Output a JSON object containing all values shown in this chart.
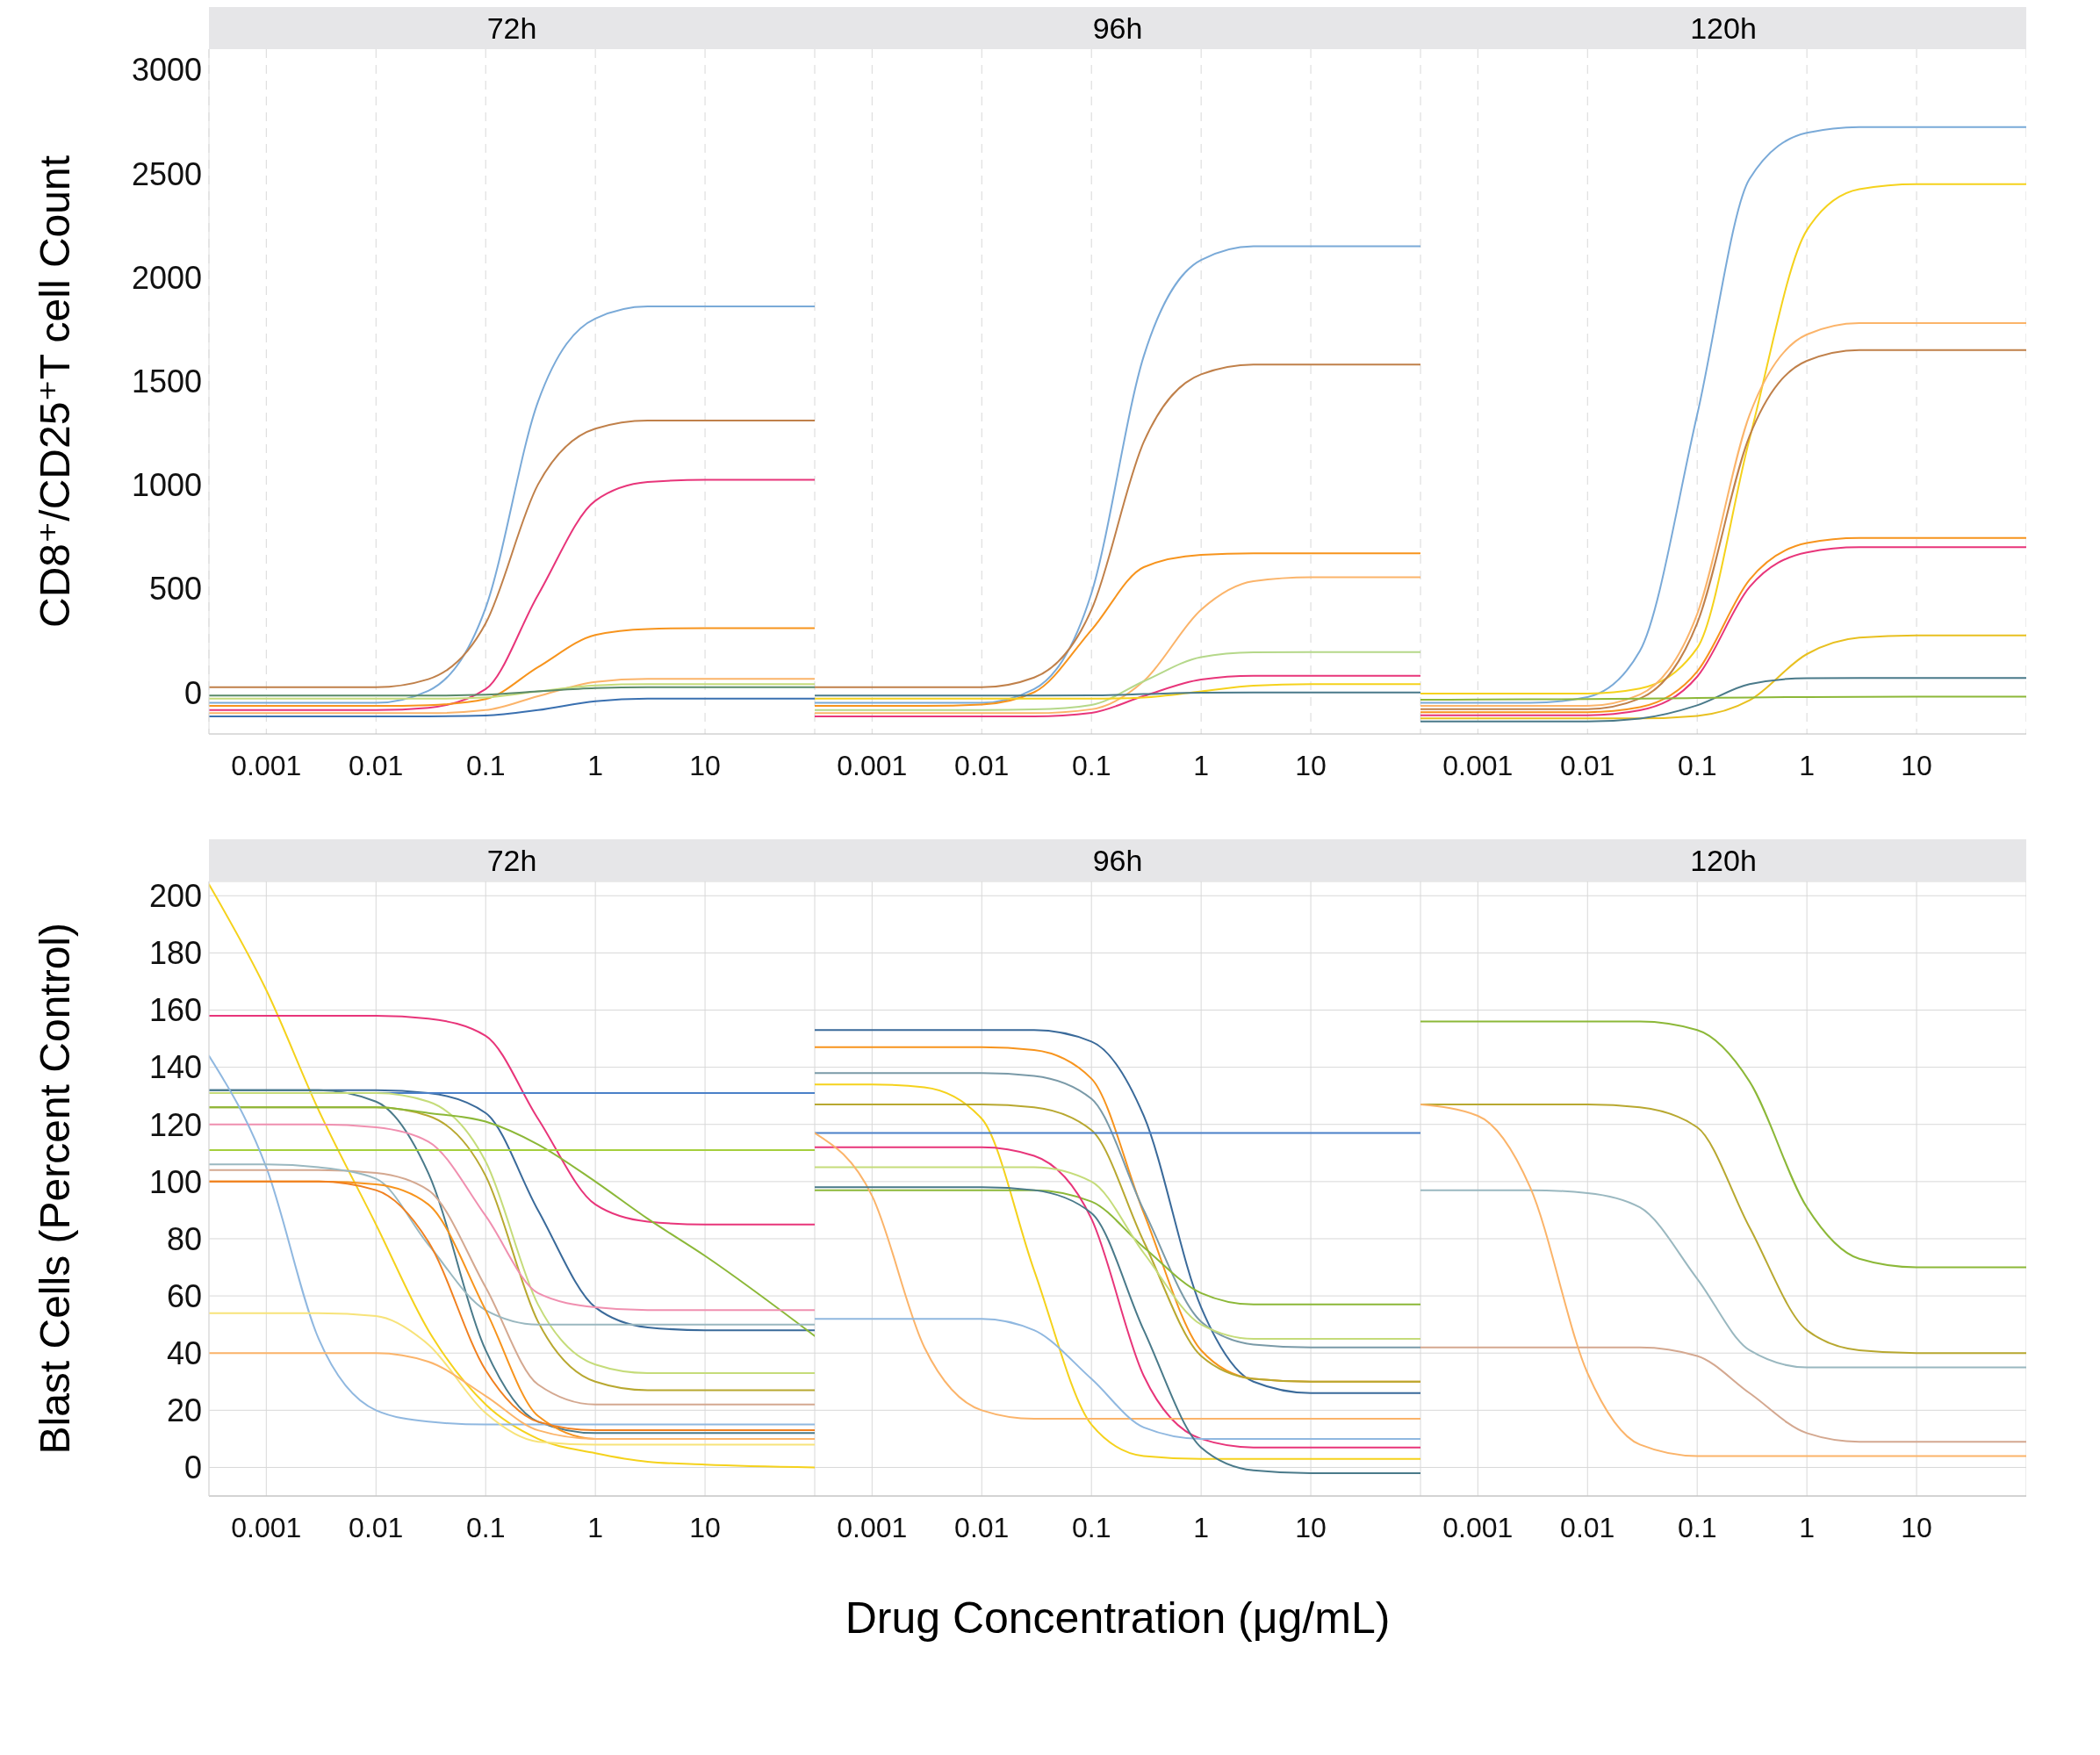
{
  "chart_data": [
    {
      "type": "line",
      "title": "72h",
      "ylabel": "CD8⁺/CD25⁺T cell Count",
      "log": "x",
      "grid": "x",
      "xlim": [
        0.0003,
        100
      ],
      "xticks": [
        0.001,
        0.01,
        0.1,
        1,
        10
      ],
      "ylim": [
        -200,
        3100
      ],
      "yticks": [
        0,
        500,
        1000,
        1500,
        2000,
        2500,
        3000
      ],
      "x": [
        0.0003,
        0.001,
        0.003,
        0.01,
        0.03,
        0.1,
        0.3,
        1,
        3,
        10,
        100
      ],
      "series": [
        {
          "color": "#7aaad8",
          "values": [
            -50,
            -50,
            -50,
            -50,
            8,
            408,
            1401,
            1802,
            1860,
            1860,
            1860
          ]
        },
        {
          "color": "#c0804a",
          "values": [
            25,
            25,
            25,
            25,
            64,
            333,
            1002,
            1271,
            1310,
            1310,
            1310
          ]
        },
        {
          "color": "#e8357a",
          "values": [
            -85,
            -85,
            -85,
            -85,
            -74,
            16,
            470,
            924,
            1014,
            1025,
            1025
          ]
        },
        {
          "color": "#f7941d",
          "values": [
            -65,
            -65,
            -65,
            -65,
            -61,
            -32,
            122,
            277,
            306,
            310,
            310
          ]
        },
        {
          "color": "#fbb46a",
          "values": [
            -100,
            -100,
            -100,
            -100,
            -100,
            -85,
            -18,
            51,
            65,
            65,
            65
          ]
        },
        {
          "color": "#c5dc7a",
          "values": [
            -30,
            -30,
            -30,
            -30,
            -30,
            -24,
            5,
            34,
            40,
            40,
            40
          ]
        },
        {
          "color": "#5a8a6a",
          "values": [
            -15,
            -15,
            -15,
            -15,
            -15,
            -11,
            5,
            21,
            25,
            25,
            25
          ]
        },
        {
          "color": "#3a70b0",
          "values": [
            -115,
            -115,
            -115,
            -115,
            -115,
            -111,
            -85,
            -42,
            -30,
            -30,
            -30
          ]
        }
      ]
    },
    {
      "type": "line",
      "title": "96h",
      "log": "x",
      "grid": "x",
      "tick_labels": "x",
      "xlim": [
        0.0003,
        100
      ],
      "xticks": [
        0.001,
        0.01,
        0.1,
        1,
        10
      ],
      "ylim": [
        -200,
        3100
      ],
      "yticks": [
        0,
        500,
        1000,
        1500,
        2000,
        2500,
        3000
      ],
      "x": [
        0.0003,
        0.001,
        0.003,
        0.01,
        0.03,
        0.1,
        0.3,
        1,
        3,
        10,
        100
      ],
      "series": [
        {
          "color": "#7aaad8",
          "values": [
            -50,
            -50,
            -50,
            -50,
            16,
            478,
            1621,
            2084,
            2150,
            2150,
            2150
          ]
        },
        {
          "color": "#c0804a",
          "values": [
            25,
            25,
            25,
            25,
            72,
            398,
            1207,
            1533,
            1580,
            1580,
            1580
          ]
        },
        {
          "color": "#f7941d",
          "values": [
            -65,
            -65,
            -65,
            -58,
            1,
            301,
            604,
            663,
            670,
            670,
            670
          ]
        },
        {
          "color": "#fbb46a",
          "values": [
            -100,
            -100,
            -100,
            -100,
            -100,
            -81,
            55,
            399,
            536,
            555,
            555
          ]
        },
        {
          "color": "#b5d88a",
          "values": [
            -85,
            -85,
            -85,
            -85,
            -82,
            -60,
            54,
            170,
            193,
            195,
            195
          ]
        },
        {
          "color": "#e8357a",
          "values": [
            -115,
            -115,
            -115,
            -115,
            -115,
            -98,
            -17,
            62,
            80,
            80,
            80
          ]
        },
        {
          "color": "#f5d21c",
          "values": [
            -30,
            -30,
            -30,
            -30,
            -30,
            -30,
            -24,
            5,
            33,
            40,
            40
          ]
        },
        {
          "color": "#4a7a8a",
          "values": [
            -15,
            -15,
            -15,
            -15,
            -15,
            -14,
            -8,
            -1,
            0,
            0,
            0
          ]
        }
      ]
    },
    {
      "type": "line",
      "title": "120h",
      "log": "x",
      "grid": "x",
      "tick_labels": "x",
      "xlim": [
        0.0003,
        100
      ],
      "xticks": [
        0.001,
        0.01,
        0.1,
        1,
        10
      ],
      "ylim": [
        -200,
        3100
      ],
      "yticks": [
        0,
        500,
        1000,
        1500,
        2000,
        2500,
        3000
      ],
      "x": [
        0.0003,
        0.001,
        0.003,
        0.01,
        0.03,
        0.1,
        0.3,
        1,
        3,
        10,
        100
      ],
      "series": [
        {
          "color": "#7aaad8",
          "values": [
            -50,
            -50,
            -50,
            -22,
            200,
            1339,
            2475,
            2697,
            2725,
            2725,
            2725
          ]
        },
        {
          "color": "#f5d21c",
          "values": [
            -5,
            -5,
            -5,
            -5,
            19,
            214,
            1222,
            2228,
            2425,
            2450,
            2450
          ]
        },
        {
          "color": "#fbb46a",
          "values": [
            -65,
            -65,
            -65,
            -65,
            -10,
            378,
            1337,
            1725,
            1780,
            1780,
            1780
          ]
        },
        {
          "color": "#c0804a",
          "values": [
            -80,
            -80,
            -80,
            -80,
            -29,
            334,
            1236,
            1598,
            1650,
            1650,
            1650
          ]
        },
        {
          "color": "#f7941d",
          "values": [
            -95,
            -95,
            -95,
            -95,
            -71,
            101,
            543,
            720,
            745,
            745,
            745
          ]
        },
        {
          "color": "#e8357a",
          "values": [
            -110,
            -110,
            -110,
            -110,
            -86,
            76,
            508,
            675,
            700,
            700,
            700
          ]
        },
        {
          "color": "#e8c020",
          "values": [
            -125,
            -125,
            -125,
            -125,
            -125,
            -113,
            -38,
            185,
            264,
            275,
            275
          ]
        },
        {
          "color": "#4a7a8a",
          "values": [
            -140,
            -140,
            -140,
            -140,
            -126,
            -62,
            40,
            69,
            70,
            70,
            70
          ]
        },
        {
          "color": "#8cb838",
          "values": [
            -35,
            -34,
            -33,
            -32,
            -30,
            -27,
            -24,
            -22,
            -21,
            -20,
            -20
          ]
        }
      ]
    },
    {
      "type": "line",
      "title": "72h",
      "ylabel": "Blast Cells (Percent Control)",
      "log": "x",
      "grid": true,
      "xlim": [
        0.0003,
        100
      ],
      "xticks": [
        0.001,
        0.01,
        0.1,
        1,
        10
      ],
      "ylim": [
        -10,
        205
      ],
      "yticks": [
        0,
        20,
        40,
        60,
        80,
        100,
        120,
        140,
        160,
        180,
        200
      ],
      "x": [
        0.0003,
        0.001,
        0.003,
        0.01,
        0.03,
        0.1,
        0.3,
        1,
        3,
        10,
        100
      ],
      "series": [
        {
          "color": "#f5d21c",
          "values": [
            204,
            167,
            125,
            85,
            48,
            22,
            10,
            5,
            2,
            1,
            0
          ]
        },
        {
          "color": "#e8357a",
          "values": [
            158,
            158,
            158,
            158,
            157,
            151,
            122,
            92,
            86,
            85,
            85
          ]
        },
        {
          "color": "#3a6a9a",
          "values": [
            132,
            132,
            132,
            132,
            131,
            124,
            90,
            56,
            49,
            48,
            48
          ]
        },
        {
          "color": "#4a80c8",
          "values": [
            131,
            131,
            131,
            131,
            131,
            131,
            131,
            131,
            131,
            131,
            131
          ]
        },
        {
          "color": "#4a7a8a",
          "values": [
            132,
            132,
            132,
            128,
            103,
            41,
            16,
            12,
            12,
            12,
            12
          ]
        },
        {
          "color": "#c5dc7a",
          "values": [
            131,
            131,
            131,
            131,
            128,
            107,
            57,
            36,
            33,
            33,
            33
          ]
        },
        {
          "color": "#b8a830",
          "values": [
            126,
            126,
            126,
            126,
            123,
            102,
            51,
            30,
            27,
            27,
            27
          ]
        },
        {
          "color": "#8cb838",
          "values": [
            126,
            126,
            126,
            126,
            124,
            121,
            113,
            100,
            87,
            74,
            46
          ]
        },
        {
          "color": "#f090b0",
          "values": [
            120,
            120,
            120,
            119,
            114,
            88,
            61,
            56,
            55,
            55,
            55
          ]
        },
        {
          "color": "#a5cf3c",
          "values": [
            111,
            111,
            111,
            111,
            111,
            111,
            111,
            111,
            111,
            111,
            111
          ]
        },
        {
          "color": "#90b8e0",
          "values": [
            144,
            105,
            45,
            20,
            16,
            15,
            15,
            15,
            15,
            15,
            15
          ]
        },
        {
          "color": "#d4a890",
          "values": [
            104,
            104,
            104,
            103,
            97,
            63,
            29,
            22,
            22,
            22,
            22
          ]
        },
        {
          "color": "#9ab8c0",
          "values": [
            106,
            106,
            105,
            101,
            78,
            55,
            50,
            50,
            50,
            50,
            50
          ]
        },
        {
          "color": "#f7941d",
          "values": [
            100,
            100,
            100,
            99,
            92,
            55,
            18,
            10,
            10,
            10,
            10
          ]
        },
        {
          "color": "#f08020",
          "values": [
            100,
            100,
            100,
            97,
            79,
            34,
            16,
            13,
            13,
            13,
            13
          ]
        },
        {
          "color": "#f7e37a",
          "values": [
            54,
            54,
            54,
            53,
            43,
            19,
            9,
            8,
            8,
            8,
            8
          ]
        },
        {
          "color": "#fbb46a",
          "values": [
            40,
            40,
            40,
            40,
            37,
            25,
            13,
            10,
            10,
            10,
            10
          ]
        }
      ]
    },
    {
      "type": "line",
      "title": "96h",
      "xlabel": "Drug Concentration (μg/mL)",
      "log": "x",
      "grid": true,
      "tick_labels": "x",
      "xlim": [
        0.0003,
        100
      ],
      "xticks": [
        0.001,
        0.01,
        0.1,
        1,
        10
      ],
      "ylim": [
        -10,
        205
      ],
      "yticks": [
        0,
        20,
        40,
        60,
        80,
        100,
        120,
        140,
        160,
        180,
        200
      ],
      "x": [
        0.0003,
        0.001,
        0.003,
        0.01,
        0.03,
        0.1,
        0.3,
        1,
        3,
        10,
        100
      ],
      "series": [
        {
          "color": "#3a6a9a",
          "values": [
            153,
            153,
            153,
            153,
            153,
            149,
            123,
            56,
            30,
            26,
            26
          ]
        },
        {
          "color": "#f7941d",
          "values": [
            147,
            147,
            147,
            147,
            146,
            136,
            89,
            41,
            31,
            30,
            30
          ]
        },
        {
          "color": "#7a9aa8",
          "values": [
            138,
            138,
            138,
            138,
            137,
            129,
            90,
            51,
            43,
            42,
            42
          ]
        },
        {
          "color": "#f5d21c",
          "values": [
            134,
            134,
            133,
            122,
            69,
            15,
            4,
            3,
            3,
            3,
            3
          ]
        },
        {
          "color": "#b8a830",
          "values": [
            127,
            127,
            127,
            127,
            126,
            118,
            79,
            39,
            31,
            30,
            30
          ]
        },
        {
          "color": "#8cb838",
          "values": [
            97,
            97,
            97,
            97,
            97,
            93,
            77,
            61,
            57,
            57,
            57
          ]
        },
        {
          "color": "#4a80c8",
          "values": [
            117,
            117,
            117,
            117,
            117,
            117,
            117,
            117,
            117,
            117,
            117
          ]
        },
        {
          "color": "#e8357a",
          "values": [
            112,
            112,
            112,
            112,
            109,
            87,
            32,
            10,
            7,
            7,
            7
          ]
        },
        {
          "color": "#c5dc7a",
          "values": [
            105,
            105,
            105,
            105,
            105,
            100,
            75,
            50,
            45,
            45,
            45
          ]
        },
        {
          "color": "#fbb46a",
          "values": [
            117,
            95,
            42,
            20,
            17,
            17,
            17,
            17,
            17,
            17,
            17
          ]
        },
        {
          "color": "#90b8e0",
          "values": [
            52,
            52,
            52,
            52,
            48,
            31,
            14,
            10,
            10,
            10,
            10
          ]
        },
        {
          "color": "#4a7a8a",
          "values": [
            98,
            98,
            98,
            98,
            97,
            89,
            48,
            7,
            -1,
            -2,
            -2
          ]
        }
      ]
    },
    {
      "type": "line",
      "title": "120h",
      "log": "x",
      "grid": true,
      "tick_labels": "x",
      "xlim": [
        0.0003,
        100
      ],
      "xticks": [
        0.001,
        0.01,
        0.1,
        1,
        10
      ],
      "ylim": [
        -10,
        205
      ],
      "yticks": [
        0,
        20,
        40,
        60,
        80,
        100,
        120,
        140,
        160,
        180,
        200
      ],
      "x": [
        0.0003,
        0.001,
        0.003,
        0.01,
        0.03,
        0.1,
        0.3,
        1,
        3,
        10,
        100
      ],
      "series": [
        {
          "color": "#8cb838",
          "values": [
            156,
            156,
            156,
            156,
            156,
            153,
            135,
            91,
            73,
            70,
            70
          ]
        },
        {
          "color": "#b8a830",
          "values": [
            127,
            127,
            127,
            127,
            126,
            119,
            84,
            48,
            41,
            40,
            40
          ]
        },
        {
          "color": "#9ab8c0",
          "values": [
            97,
            97,
            97,
            96,
            91,
            66,
            41,
            35,
            35,
            35,
            35
          ]
        },
        {
          "color": "#d4a890",
          "values": [
            42,
            42,
            42,
            42,
            42,
            39,
            26,
            12,
            9,
            9,
            9
          ]
        },
        {
          "color": "#fbb46a",
          "values": [
            127,
            123,
            98,
            33,
            8,
            4,
            4,
            4,
            4,
            4,
            4
          ]
        }
      ]
    }
  ]
}
